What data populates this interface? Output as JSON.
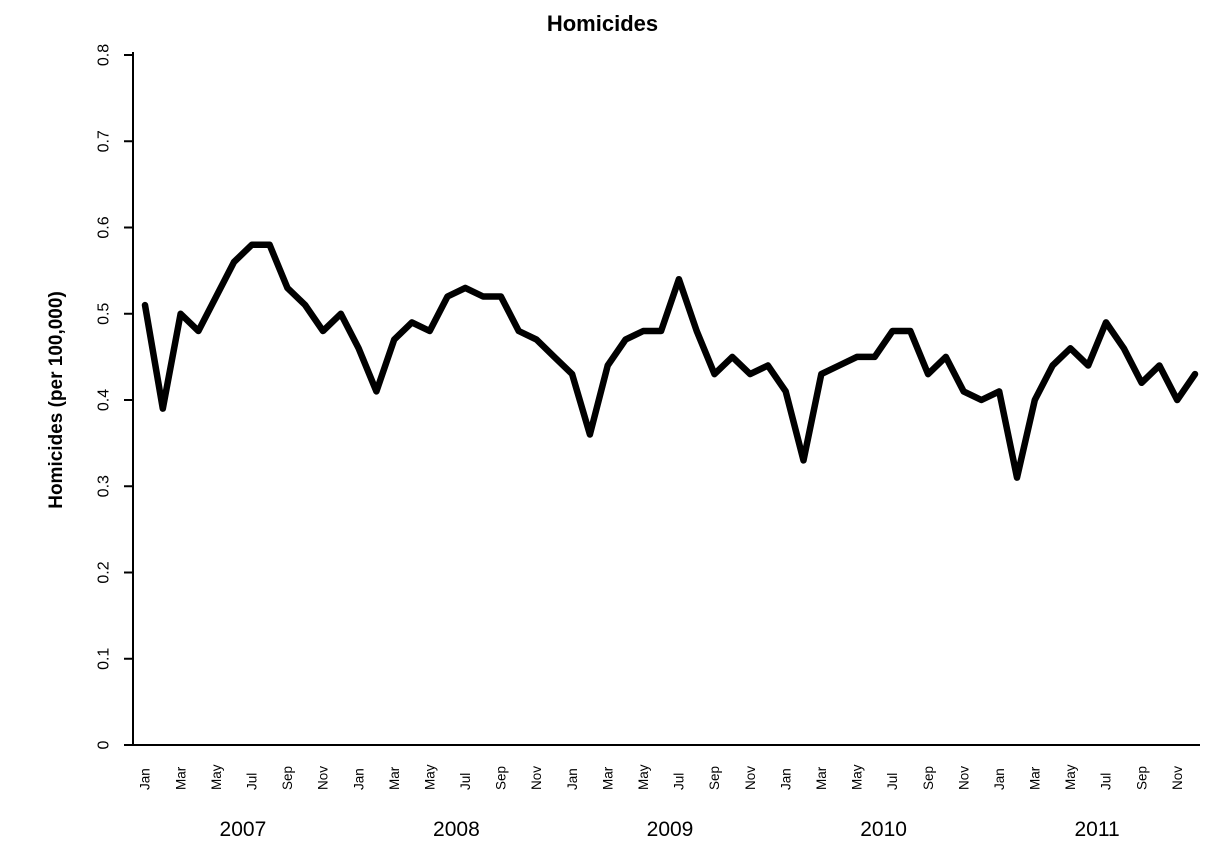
{
  "chart_data": {
    "type": "line",
    "title": "Homicides",
    "ylabel": "Homicides (per 100,000)",
    "xlabel": "",
    "x_start": "Jan 2007",
    "x_end": "Dec 2011",
    "x_unit": "month",
    "years": [
      "2007",
      "2008",
      "2009",
      "2010",
      "2011"
    ],
    "month_tick_labels": [
      "Jan",
      "Mar",
      "May",
      "Jul",
      "Sep",
      "Nov"
    ],
    "y_tick_labels": [
      "0",
      "0.1",
      "0.2",
      "0.3",
      "0.4",
      "0.5",
      "0.6",
      "0.7",
      "0.8"
    ],
    "ylim": [
      0,
      0.8
    ],
    "grid": false,
    "legend": "none",
    "line_color": "#000000",
    "background_color": "#ffffff",
    "series": [
      {
        "name": "Homicides",
        "values": [
          0.51,
          0.39,
          0.5,
          0.48,
          0.52,
          0.56,
          0.58,
          0.58,
          0.53,
          0.51,
          0.48,
          0.5,
          0.46,
          0.41,
          0.47,
          0.49,
          0.48,
          0.52,
          0.53,
          0.52,
          0.52,
          0.48,
          0.47,
          0.45,
          0.43,
          0.36,
          0.44,
          0.47,
          0.48,
          0.48,
          0.54,
          0.48,
          0.43,
          0.45,
          0.43,
          0.44,
          0.41,
          0.33,
          0.43,
          0.44,
          0.45,
          0.45,
          0.48,
          0.48,
          0.43,
          0.45,
          0.41,
          0.4,
          0.41,
          0.31,
          0.4,
          0.44,
          0.46,
          0.44,
          0.49,
          0.46,
          0.42,
          0.44,
          0.4,
          0.43
        ]
      }
    ]
  }
}
